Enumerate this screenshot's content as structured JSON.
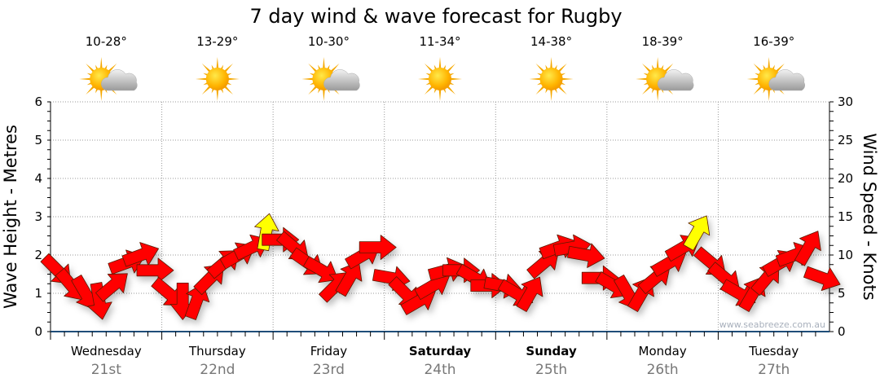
{
  "chart_data": {
    "type": "scatter",
    "title": "7 day wind & wave forecast for Rugby",
    "ylabel_left": "Wave Height - Metres",
    "ylabel_right": "Wind Speed - Knots",
    "ylim_left": [
      0,
      6
    ],
    "ylim_right": [
      0,
      30
    ],
    "yticks_left": [
      "0",
      "1",
      "2",
      "3",
      "4",
      "5",
      "6"
    ],
    "yticks_right": [
      "0",
      "5",
      "10",
      "15",
      "20",
      "25",
      "30"
    ],
    "grid": true,
    "watermark": "www.seabreeze.com.au",
    "days": [
      {
        "name": "Wednesday",
        "date": "21st",
        "temp": "10-28°",
        "icon": "sun-cloud-icon",
        "bold": false
      },
      {
        "name": "Thursday",
        "date": "22nd",
        "temp": "13-29°",
        "icon": "sun-icon",
        "bold": false
      },
      {
        "name": "Friday",
        "date": "23rd",
        "temp": "10-30°",
        "icon": "sun-cloud-icon",
        "bold": false
      },
      {
        "name": "Saturday",
        "date": "24th",
        "temp": "11-34°",
        "icon": "sun-icon",
        "bold": true
      },
      {
        "name": "Sunday",
        "date": "25th",
        "temp": "14-38°",
        "icon": "sun-icon",
        "bold": true
      },
      {
        "name": "Monday",
        "date": "26th",
        "temp": "18-39°",
        "icon": "sun-cloud-icon",
        "bold": false
      },
      {
        "name": "Tuesday",
        "date": "27th",
        "temp": "16-39°",
        "icon": "sun-cloud-icon",
        "bold": false
      }
    ],
    "wind_series": {
      "name": "Wind speed (knots) and heading, 3-hourly",
      "knots": [
        8,
        6,
        5,
        4,
        6,
        9,
        10,
        8,
        5,
        4,
        4,
        7,
        9,
        10,
        11,
        13,
        12,
        11,
        9,
        8,
        6,
        7,
        10,
        11,
        7,
        5,
        4,
        6,
        8,
        8,
        7,
        6,
        6,
        5,
        5,
        9,
        11,
        11,
        10,
        7,
        6,
        5,
        5,
        7,
        9,
        11,
        13,
        9,
        7,
        5,
        5,
        7,
        9,
        10,
        11,
        7
      ],
      "heading_deg": [
        45,
        50,
        60,
        80,
        -40,
        -20,
        -20,
        0,
        40,
        90,
        -70,
        -45,
        -40,
        -30,
        -25,
        -80,
        0,
        40,
        35,
        30,
        -45,
        -60,
        -30,
        0,
        10,
        45,
        -30,
        -30,
        -15,
        0,
        30,
        0,
        10,
        30,
        -60,
        -40,
        -20,
        -10,
        10,
        0,
        30,
        60,
        -60,
        -40,
        -30,
        -30,
        -60,
        40,
        40,
        30,
        -60,
        -50,
        -30,
        -20,
        -60,
        20
      ]
    },
    "colors": {
      "normal": "#ff0000",
      "strong": "#ffff00",
      "axis": "#1f4e79",
      "grid": "#999999"
    },
    "strong_threshold_knots": 12.5
  }
}
